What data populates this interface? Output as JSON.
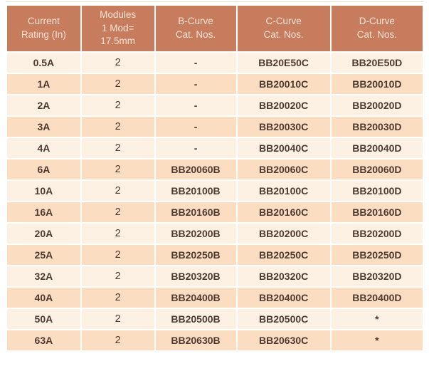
{
  "colors": {
    "header_bg": "#c87c5e",
    "header_text": "#f6e3d6",
    "row_light": "#fcf1e2",
    "row_peach": "#fbddc2",
    "body_text": "#4e3a30",
    "grid": "#ffffff"
  },
  "table": {
    "column_keys": [
      "current_rating",
      "modules",
      "b_curve",
      "c_curve",
      "d_curve"
    ],
    "columns": [
      {
        "id": "current-rating",
        "lines": [
          "Current",
          "Rating (In)"
        ]
      },
      {
        "id": "modules",
        "lines": [
          "Modules",
          "1 Mod=",
          "17.5mm"
        ]
      },
      {
        "id": "b-curve",
        "lines": [
          "B-Curve",
          "Cat. Nos."
        ]
      },
      {
        "id": "c-curve",
        "lines": [
          "C-Curve",
          "Cat. Nos."
        ]
      },
      {
        "id": "d-curve",
        "lines": [
          "D-Curve",
          "Cat. Nos."
        ]
      }
    ],
    "rows": [
      [
        "0.5A",
        "2",
        "-",
        "BB20E50C",
        "BB20E50D"
      ],
      [
        "1A",
        "2",
        "-",
        "BB20010C",
        "BB20010D"
      ],
      [
        "2A",
        "2",
        "-",
        "BB20020C",
        "BB20020D"
      ],
      [
        "3A",
        "2",
        "-",
        "BB20030C",
        "BB20030D"
      ],
      [
        "4A",
        "2",
        "-",
        "BB20040C",
        "BB20040D"
      ],
      [
        "6A",
        "2",
        "BB20060B",
        "BB20060C",
        "BB20060D"
      ],
      [
        "10A",
        "2",
        "BB20100B",
        "BB20100C",
        "BB20100D"
      ],
      [
        "16A",
        "2",
        "BB20160B",
        "BB20160C",
        "BB20160D"
      ],
      [
        "20A",
        "2",
        "BB20200B",
        "BB20200C",
        "BB20200D"
      ],
      [
        "25A",
        "2",
        "BB20250B",
        "BB20250C",
        "BB20250D"
      ],
      [
        "32A",
        "2",
        "BB20320B",
        "BB20320C",
        "BB20320D"
      ],
      [
        "40A",
        "2",
        "BB20400B",
        "BB20400C",
        "BB20400D"
      ],
      [
        "50A",
        "2",
        "BB20500B",
        "BB20500C",
        "*"
      ],
      [
        "63A",
        "2",
        "BB20630B",
        "BB20630C",
        "*"
      ]
    ]
  }
}
